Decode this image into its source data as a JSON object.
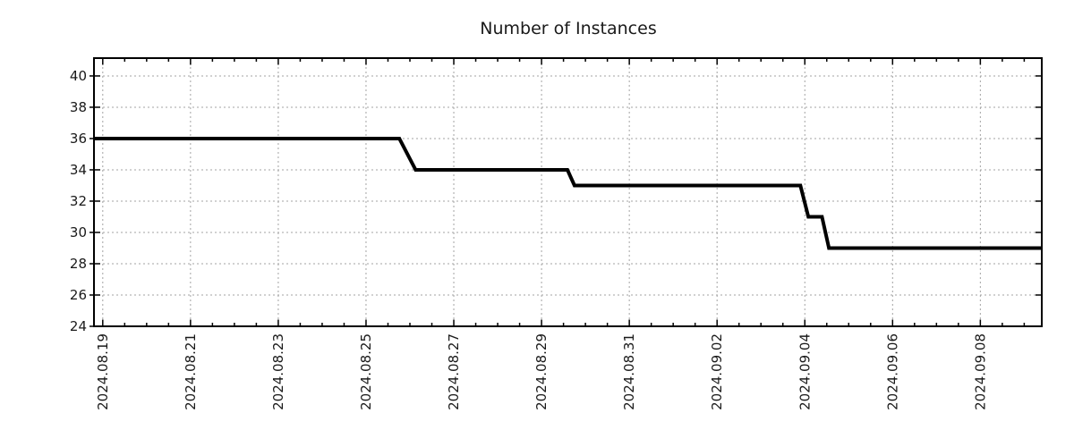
{
  "chart_data": {
    "type": "line",
    "title": "Number of Instances",
    "xlabel": "",
    "ylabel": "",
    "legend": {
      "show": false
    },
    "grid": {
      "show": true,
      "color": "#a3a3a3",
      "style": "dotted"
    },
    "x_axis": {
      "kind": "date",
      "tick_labels": [
        "2024.08.19",
        "2024.08.21",
        "2024.08.23",
        "2024.08.25",
        "2024.08.27",
        "2024.08.29",
        "2024.08.31",
        "2024.09.02",
        "2024.09.04",
        "2024.09.06",
        "2024.09.08"
      ],
      "tick_day_offsets": [
        0,
        2,
        4,
        6,
        8,
        10,
        12,
        14,
        16,
        18,
        20
      ],
      "minor_tick_interval_days": 0.5,
      "range_day_offsets": [
        -0.2,
        21.4
      ],
      "label_rotation_deg": -90
    },
    "y_axis": {
      "tick_labels": [
        "24",
        "26",
        "28",
        "30",
        "32",
        "34",
        "36",
        "38",
        "40"
      ],
      "tick_values": [
        24,
        26,
        28,
        30,
        32,
        34,
        36,
        38,
        40
      ],
      "range": [
        24,
        41.14
      ]
    },
    "series": [
      {
        "name": "number-of-instances",
        "color": "#000000",
        "line_width": 4,
        "points_day_value": [
          [
            -0.2,
            36
          ],
          [
            6.76,
            36
          ],
          [
            7.13,
            34
          ],
          [
            10.59,
            34
          ],
          [
            10.75,
            33
          ],
          [
            15.9,
            33
          ],
          [
            16.08,
            31
          ],
          [
            16.39,
            31
          ],
          [
            16.55,
            29
          ],
          [
            21.4,
            29
          ]
        ]
      }
    ],
    "step_transitions": [
      {
        "value": 36,
        "holds_from": "2024.08.19 (left edge)",
        "holds_until": "2024.08.25 (late)"
      },
      {
        "value": 34,
        "holds_from": "2024.08.26 (early)",
        "holds_until": "2024.08.29 (mid)"
      },
      {
        "value": 33,
        "holds_from": "2024.08.29 (late)",
        "holds_until": "2024.09.03 (late)"
      },
      {
        "value": 31,
        "holds_from": "2024.09.04 (early)",
        "holds_until": "2024.09.04 (mid)"
      },
      {
        "value": 29,
        "holds_from": "2024.09.04 (mid)",
        "holds_until": "2024.09.09 (right edge)"
      }
    ],
    "colors": {
      "line": "#000000",
      "axis": "#000000",
      "grid": "#a3a3a3",
      "text": "#1a1a1a",
      "background": "#ffffff"
    }
  }
}
